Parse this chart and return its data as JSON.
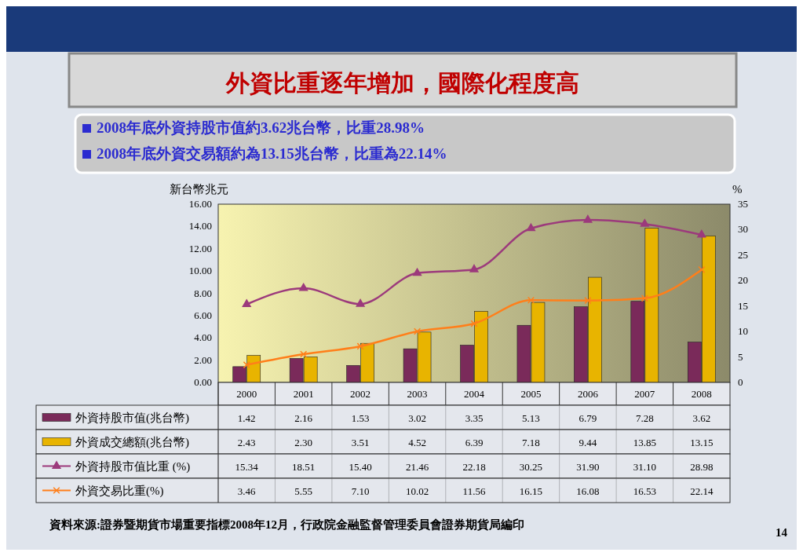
{
  "chart_data": {
    "type": "bar",
    "title": "外資比重逐年增加，國際化程度高",
    "ylabel": "新台幣兆元",
    "y2label": "%",
    "categories": [
      "2000",
      "2001",
      "2002",
      "2003",
      "2004",
      "2005",
      "2006",
      "2007",
      "2008"
    ],
    "series": [
      {
        "name": "外資持股市值(兆台幣)",
        "color": "#7a2a5a",
        "values": [
          1.42,
          2.16,
          1.53,
          3.02,
          3.35,
          5.13,
          6.79,
          7.28,
          3.62
        ],
        "value_labels": [
          "1.42",
          "2.16",
          "1.53",
          "3.02",
          "3.35",
          "5.13",
          "6.79",
          "7.28",
          "3.62"
        ]
      },
      {
        "name": "外資成交總額(兆台幣)",
        "color": "#e8b400",
        "values": [
          2.43,
          2.3,
          3.51,
          4.52,
          6.39,
          7.18,
          9.44,
          13.85,
          13.15
        ],
        "value_labels": [
          "2.43",
          "2.30",
          "3.51",
          "4.52",
          "6.39",
          "7.18",
          "9.44",
          "13.85",
          "13.15"
        ]
      },
      {
        "name": "外資持股市值比重 (%)",
        "type": "line",
        "axis": "y2",
        "marker": "triangle",
        "color": "#9c3a7c",
        "values": [
          15.34,
          18.51,
          15.4,
          21.46,
          22.18,
          30.25,
          31.9,
          31.1,
          28.98
        ],
        "value_labels": [
          "15.34",
          "18.51",
          "15.40",
          "21.46",
          "22.18",
          "30.25",
          "31.90",
          "31.10",
          "28.98"
        ]
      },
      {
        "name": "外資交易比重(%)",
        "type": "line",
        "axis": "y2",
        "marker": "cross",
        "color": "#ff7f1a",
        "values": [
          3.46,
          5.55,
          7.1,
          10.02,
          11.56,
          16.15,
          16.08,
          16.53,
          22.14
        ],
        "value_labels": [
          "3.46",
          "5.55",
          "7.10",
          "10.02",
          "11.56",
          "16.15",
          "16.08",
          "16.53",
          "22.14"
        ]
      }
    ],
    "ylim": [
      0,
      16
    ],
    "yticks": [
      {
        "value": 0,
        "label": "0.00"
      },
      {
        "value": 2,
        "label": "2.00"
      },
      {
        "value": 4,
        "label": "4.00"
      },
      {
        "value": 6,
        "label": "6.00"
      },
      {
        "value": 8,
        "label": "8.00"
      },
      {
        "value": 10,
        "label": "10.00"
      },
      {
        "value": 12,
        "label": "12.00"
      },
      {
        "value": 14,
        "label": "14.00"
      },
      {
        "value": 16,
        "label": "16.00"
      }
    ],
    "y2lim": [
      0,
      35
    ],
    "y2ticks": [
      0,
      5,
      10,
      15,
      20,
      25,
      30,
      35
    ],
    "legend": "bottom left",
    "annotations": [
      "2008年底外資持股市值約3.62兆台幣，比重28.98%",
      "2008年底外資交易額約為13.15兆台幣，比重為22.14%",
      "資料來源:證券暨期貨市場重要指標2008年12月，行政院金融監督管理委員會證券期貨局編印",
      "14"
    ]
  }
}
